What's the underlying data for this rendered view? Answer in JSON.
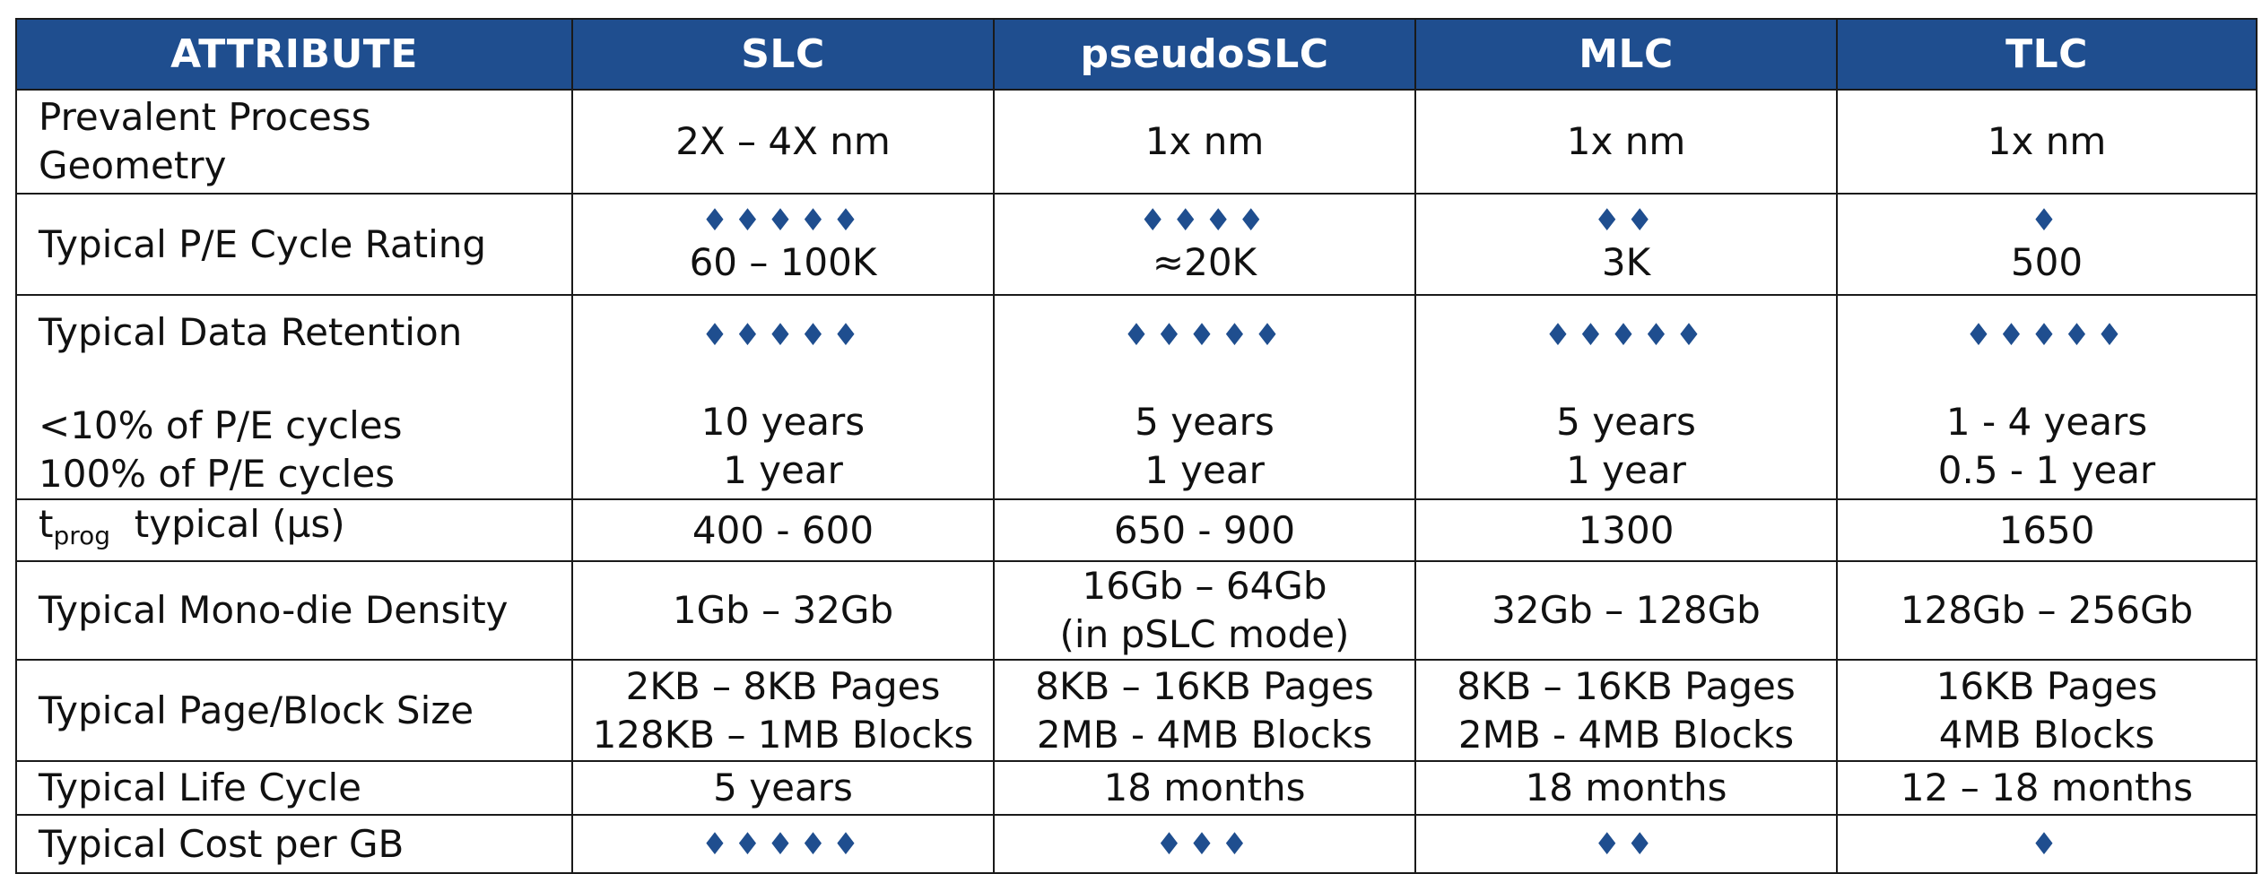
{
  "headers": [
    "ATTRIBUTE",
    "SLC",
    "pseudoSLC",
    "MLC",
    "TLC"
  ],
  "diamond_color": "#1f4e8f",
  "header_bg": "#1f4e8f",
  "rows": {
    "geometry": {
      "label_line1": "Prevalent Process",
      "label_line2": "Geometry",
      "slc": "2X – 4X nm",
      "pslc": "1x nm",
      "mlc": "1x nm",
      "tlc": "1x nm"
    },
    "pe_cycles": {
      "label": "Typical P/E Cycle Rating",
      "slc_diamonds": "♦♦♦♦♦",
      "slc": "60 – 100K",
      "pslc_diamonds": "♦♦♦♦",
      "pslc": "≈20K",
      "mlc_diamonds": "♦♦",
      "mlc": "3K",
      "tlc_diamonds": "♦",
      "tlc": "500"
    },
    "retention": {
      "label": "Typical Data Retention",
      "label_low": "<10% of P/E cycles",
      "label_full": "100% of P/E cycles",
      "slc_diamonds": "♦♦♦♦♦",
      "slc_low": "10 years",
      "slc_full": "1 year",
      "pslc_diamonds": "♦♦♦♦♦",
      "pslc_low": "5 years",
      "pslc_full": "1 year",
      "mlc_diamonds": "♦♦♦♦♦",
      "mlc_low": "5 years",
      "mlc_full": "1 year",
      "tlc_diamonds": "♦♦♦♦♦",
      "tlc_low": "1 - 4 years",
      "tlc_full": "0.5 - 1 year"
    },
    "tprog": {
      "label_t": "t",
      "label_sub": "prog",
      "label_rest": "typical (µs)",
      "slc": "400 - 600",
      "pslc": "650 - 900",
      "mlc": "1300",
      "tlc": "1650"
    },
    "density": {
      "label": "Typical Mono-die Density",
      "slc": "1Gb – 32Gb",
      "pslc_line1": "16Gb – 64Gb",
      "pslc_line2": "(in pSLC mode)",
      "mlc": "32Gb – 128Gb",
      "tlc": "128Gb – 256Gb"
    },
    "page_block": {
      "label": "Typical Page/Block Size",
      "slc_line1": "2KB – 8KB Pages",
      "slc_line2": "128KB – 1MB Blocks",
      "pslc_line1": "8KB – 16KB Pages",
      "pslc_line2": "2MB - 4MB Blocks",
      "mlc_line1": "8KB – 16KB Pages",
      "mlc_line2": "2MB - 4MB Blocks",
      "tlc_line1": "16KB Pages",
      "tlc_line2": "4MB Blocks"
    },
    "life_cycle": {
      "label": "Typical Life Cycle",
      "slc": "5 years",
      "pslc": "18 months",
      "mlc": "18 months",
      "tlc": "12 – 18 months"
    },
    "cost": {
      "label": "Typical Cost per GB",
      "slc_diamonds": "♦♦♦♦♦",
      "pslc_diamonds": "♦♦♦",
      "mlc_diamonds": "♦♦",
      "tlc_diamonds": "♦"
    }
  }
}
